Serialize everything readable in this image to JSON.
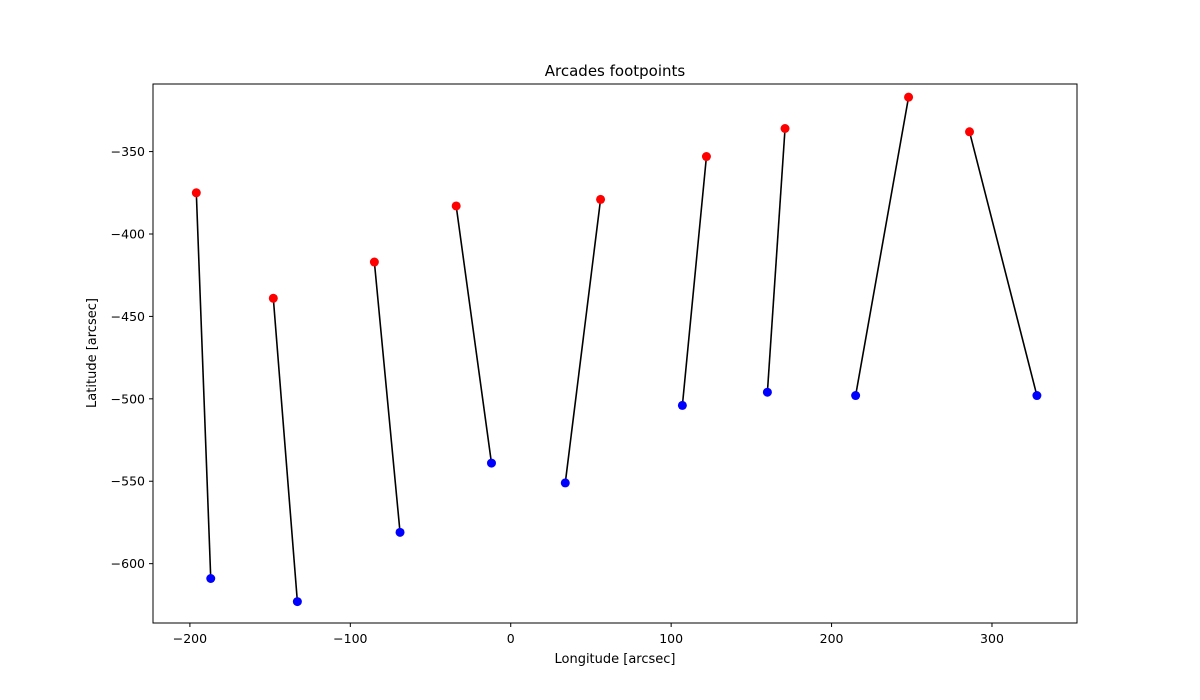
{
  "chart_data": {
    "type": "scatter",
    "title": "Arcades footpoints",
    "xlabel": "Longitude [arcsec]",
    "ylabel": "Latitude [arcsec]",
    "xlim": [
      -223,
      353
    ],
    "ylim": [
      -636,
      -309
    ],
    "xticks": [
      -200,
      -100,
      0,
      100,
      200,
      300
    ],
    "yticks": [
      -600,
      -550,
      -500,
      -450,
      -400,
      -350
    ],
    "grid": false,
    "colors": {
      "start": "#ff0000",
      "end": "#0000ff",
      "line": "#000000"
    },
    "arcades": [
      {
        "start": [
          -196,
          -375
        ],
        "end": [
          -187,
          -609
        ]
      },
      {
        "start": [
          -148,
          -439
        ],
        "end": [
          -133,
          -623
        ]
      },
      {
        "start": [
          -85,
          -417
        ],
        "end": [
          -69,
          -581
        ]
      },
      {
        "start": [
          -34,
          -383
        ],
        "end": [
          -12,
          -539
        ]
      },
      {
        "start": [
          56,
          -379
        ],
        "end": [
          34,
          -551
        ]
      },
      {
        "start": [
          122,
          -353
        ],
        "end": [
          107,
          -504
        ]
      },
      {
        "start": [
          171,
          -336
        ],
        "end": [
          160,
          -496
        ]
      },
      {
        "start": [
          248,
          -317
        ],
        "end": [
          215,
          -498
        ]
      },
      {
        "start": [
          286,
          -338
        ],
        "end": [
          328,
          -498
        ]
      }
    ]
  }
}
